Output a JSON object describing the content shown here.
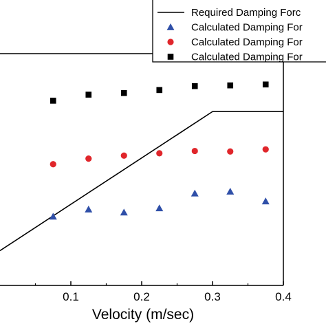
{
  "chart_data": {
    "type": "scatter",
    "xlabel": "Velocity (m/sec)",
    "ylabel": "",
    "xlim": [
      0.0,
      0.4
    ],
    "ylim": [
      0,
      1
    ],
    "x_ticks": [
      0.1,
      0.2,
      0.3,
      0.4
    ],
    "x_tick_labels": [
      "0.1",
      "0.2",
      "0.3",
      "0.4"
    ],
    "grid": false,
    "legend_position": "top-right",
    "series": [
      {
        "name": "Required Damping Forc",
        "kind": "line",
        "color": "#000000",
        "x": [
          0.0,
          0.3,
          0.4
        ],
        "y": [
          0.15,
          0.75,
          0.75
        ]
      },
      {
        "name": "Calculated Damping For",
        "kind": "marker",
        "marker": "triangle",
        "color": "#2f4fa8",
        "x": [
          0.075,
          0.125,
          0.175,
          0.225,
          0.275,
          0.325,
          0.375
        ],
        "y": [
          0.297,
          0.328,
          0.315,
          0.333,
          0.397,
          0.405,
          0.363
        ]
      },
      {
        "name": "Calculated Damping For",
        "kind": "marker",
        "marker": "circle",
        "color": "#e0262b",
        "x": [
          0.075,
          0.125,
          0.175,
          0.225,
          0.275,
          0.325,
          0.375
        ],
        "y": [
          0.523,
          0.547,
          0.56,
          0.57,
          0.58,
          0.578,
          0.587
        ]
      },
      {
        "name": "Calculated Damping For",
        "kind": "marker",
        "marker": "square",
        "color": "#000000",
        "x": [
          0.075,
          0.125,
          0.175,
          0.225,
          0.275,
          0.325,
          0.375
        ],
        "y": [
          0.797,
          0.823,
          0.83,
          0.843,
          0.86,
          0.863,
          0.867
        ]
      }
    ]
  }
}
